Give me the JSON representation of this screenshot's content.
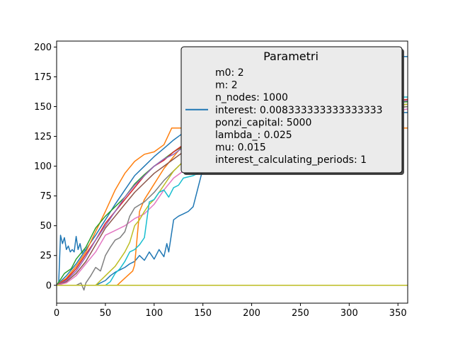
{
  "chart_data": {
    "type": "line",
    "title": "",
    "xlabel": "",
    "ylabel": "",
    "xlim": [
      0,
      360
    ],
    "ylim": [
      -15,
      205
    ],
    "xticks": [
      0,
      50,
      100,
      150,
      200,
      250,
      300,
      350
    ],
    "yticks": [
      0,
      25,
      50,
      75,
      100,
      125,
      150,
      175,
      200
    ],
    "grid": false,
    "legend": {
      "placement": "upper-right",
      "title": "Parametri",
      "entries": [
        "m0: 2",
        "m: 2",
        "n_nodes: 1000",
        "interest: 0.008333333333333333",
        "ponzi_capital: 5000",
        "lambda_: 0.025",
        "mu: 0.015",
        "interest_calculating_periods: 1"
      ],
      "handle_color": "#1f77b4",
      "handle_entry_index": 3
    },
    "flat_series": [
      {
        "color": "#1f77b4",
        "x": [
          0,
          360
        ],
        "y": [
          0,
          0
        ]
      },
      {
        "color": "#ff7f0e",
        "x": [
          0,
          360
        ],
        "y": [
          0,
          0
        ]
      },
      {
        "color": "#2ca02c",
        "x": [
          0,
          360
        ],
        "y": [
          0,
          0
        ]
      },
      {
        "color": "#bcbd22",
        "x": [
          0,
          360
        ],
        "y": [
          0,
          0
        ]
      }
    ],
    "series": [
      {
        "color": "#1f77b4",
        "x": [
          0,
          2,
          4,
          6,
          8,
          10,
          12,
          14,
          16,
          18,
          20,
          22,
          24,
          26,
          28,
          30,
          32
        ],
        "y": [
          0,
          0,
          42,
          35,
          40,
          30,
          33,
          28,
          30,
          28,
          41,
          30,
          35,
          27,
          30,
          29,
          31
        ]
      },
      {
        "color": "#1f77b4",
        "x": [
          30,
          40,
          50,
          55,
          60,
          65,
          70,
          75,
          80,
          85,
          90,
          95,
          100,
          105,
          110,
          113,
          115,
          120,
          125,
          130,
          135,
          140,
          150,
          160,
          170,
          180,
          190,
          200,
          210,
          220,
          230,
          240,
          250,
          260,
          270,
          280,
          290,
          300,
          310,
          320,
          330,
          340,
          350,
          360
        ],
        "y": [
          0,
          0,
          4,
          8,
          11,
          13,
          15,
          18,
          20,
          25,
          21,
          28,
          22,
          30,
          24,
          35,
          28,
          55,
          58,
          60,
          62,
          66,
          98,
          105,
          110,
          118,
          122,
          125,
          128,
          130,
          132,
          134,
          136,
          138,
          140,
          142,
          143,
          144,
          145,
          145,
          145,
          145,
          145,
          145
        ]
      },
      {
        "color": "#1f77b4",
        "x": [
          0,
          5,
          10,
          20,
          30,
          40,
          50,
          60,
          70,
          80,
          90,
          100,
          110,
          120,
          130,
          140,
          150,
          200,
          250,
          300,
          330,
          332,
          360
        ],
        "y": [
          0,
          4,
          8,
          18,
          30,
          42,
          55,
          68,
          80,
          92,
          100,
          108,
          115,
          122,
          128,
          134,
          138,
          145,
          150,
          160,
          172,
          192,
          192
        ]
      },
      {
        "color": "#ff7f0e",
        "x": [
          0,
          10,
          20,
          30,
          40,
          50,
          60,
          70,
          80,
          90,
          100,
          110,
          118,
          120,
          150,
          200,
          250,
          300,
          360
        ],
        "y": [
          0,
          6,
          16,
          28,
          45,
          62,
          80,
          94,
          104,
          110,
          112,
          118,
          132,
          132,
          132,
          132,
          132,
          132,
          132
        ]
      },
      {
        "color": "#ff7f0e",
        "x": [
          55,
          62,
          70,
          78,
          80,
          85,
          90,
          100,
          110,
          120,
          130,
          140,
          150,
          200,
          250,
          300,
          360
        ],
        "y": [
          0,
          0,
          6,
          12,
          17,
          62,
          72,
          85,
          98,
          108,
          118,
          128,
          135,
          140,
          145,
          148,
          150
        ]
      },
      {
        "color": "#2ca02c",
        "x": [
          0,
          8,
          15,
          20,
          30,
          40,
          50,
          60,
          70,
          80,
          90,
          100,
          110,
          120,
          130,
          140,
          150,
          200,
          250,
          300,
          360
        ],
        "y": [
          0,
          10,
          14,
          22,
          32,
          48,
          58,
          66,
          74,
          85,
          93,
          100,
          106,
          112,
          117,
          124,
          130,
          140,
          148,
          152,
          154
        ]
      },
      {
        "color": "#d62728",
        "x": [
          0,
          10,
          20,
          30,
          40,
          50,
          60,
          70,
          80,
          90,
          100,
          110,
          120,
          130,
          140,
          150,
          200,
          250,
          300,
          360
        ],
        "y": [
          0,
          5,
          14,
          26,
          38,
          52,
          62,
          72,
          82,
          92,
          100,
          105,
          112,
          118,
          124,
          130,
          140,
          148,
          152,
          156
        ]
      },
      {
        "color": "#9467bd",
        "x": [
          0,
          10,
          20,
          30,
          40,
          50,
          60,
          70,
          80,
          90,
          100,
          110,
          120,
          130,
          140,
          150,
          200,
          250,
          300,
          360
        ],
        "y": [
          0,
          4,
          12,
          24,
          38,
          50,
          62,
          74,
          84,
          92,
          100,
          106,
          110,
          116,
          120,
          126,
          136,
          144,
          150,
          155
        ]
      },
      {
        "color": "#8c564b",
        "x": [
          0,
          10,
          20,
          30,
          40,
          50,
          60,
          70,
          80,
          90,
          100,
          110,
          120,
          130,
          140,
          150,
          200,
          250,
          300,
          360
        ],
        "y": [
          0,
          3,
          10,
          20,
          34,
          48,
          58,
          68,
          78,
          86,
          94,
          100,
          106,
          112,
          118,
          124,
          134,
          142,
          148,
          152
        ]
      },
      {
        "color": "#e377c2",
        "x": [
          0,
          10,
          20,
          30,
          40,
          50,
          60,
          70,
          80,
          90,
          100,
          110,
          120,
          130,
          140,
          150,
          200,
          250,
          300,
          360
        ],
        "y": [
          0,
          2,
          8,
          18,
          28,
          42,
          46,
          50,
          56,
          60,
          68,
          80,
          90,
          96,
          102,
          108,
          122,
          134,
          140,
          148
        ]
      },
      {
        "color": "#7f7f7f",
        "x": [
          20,
          25,
          28,
          30,
          35,
          40,
          45,
          50,
          55,
          60,
          65,
          70,
          75,
          80,
          90,
          100,
          110,
          120,
          130,
          140,
          150,
          200,
          250,
          300,
          360
        ],
        "y": [
          0,
          2,
          -4,
          2,
          8,
          15,
          12,
          25,
          32,
          38,
          40,
          45,
          58,
          65,
          70,
          78,
          88,
          96,
          104,
          110,
          116,
          128,
          136,
          144,
          150
        ]
      },
      {
        "color": "#bcbd22",
        "x": [
          40,
          45,
          50,
          55,
          60,
          65,
          70,
          75,
          80,
          85,
          90,
          95,
          100,
          110,
          120,
          130,
          140,
          150,
          200,
          250,
          300,
          360
        ],
        "y": [
          0,
          4,
          8,
          12,
          16,
          22,
          28,
          36,
          50,
          55,
          62,
          68,
          72,
          84,
          96,
          104,
          112,
          118,
          130,
          140,
          146,
          152
        ]
      },
      {
        "color": "#17becf",
        "x": [
          50,
          55,
          60,
          65,
          70,
          75,
          80,
          85,
          90,
          95,
          100,
          105,
          110,
          115,
          120,
          125,
          130,
          140,
          150,
          200,
          250,
          272,
          275,
          300,
          360
        ],
        "y": [
          0,
          3,
          10,
          14,
          20,
          28,
          30,
          34,
          40,
          70,
          72,
          78,
          80,
          74,
          82,
          84,
          90,
          92,
          96,
          112,
          124,
          135,
          158,
          158,
          158
        ]
      }
    ]
  }
}
